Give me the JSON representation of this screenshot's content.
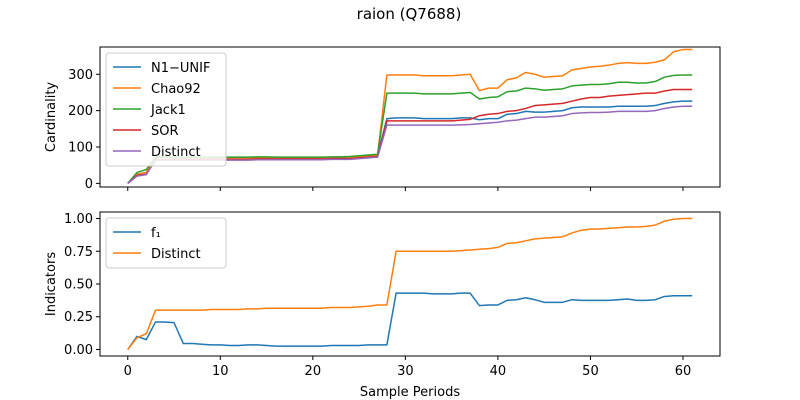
{
  "figure": {
    "title": "raion (Q7688)"
  },
  "colors": {
    "blue": "#1f77b4",
    "orange": "#ff7f0e",
    "green": "#2ca02c",
    "red": "#d62728",
    "purple": "#9467bd"
  },
  "chart_data": [
    {
      "type": "line",
      "title": "",
      "xlabel": "",
      "ylabel": "Cardinality",
      "xlim": [
        -3,
        64
      ],
      "ylim": [
        -10,
        375
      ],
      "xticks": [
        0,
        10,
        20,
        30,
        40,
        50,
        60
      ],
      "xtick_labels_visible": false,
      "yticks": [
        0,
        100,
        200,
        300
      ],
      "grid": false,
      "legend": "top-left",
      "x": [
        0,
        1,
        2,
        3,
        4,
        5,
        6,
        7,
        8,
        9,
        10,
        11,
        12,
        13,
        14,
        15,
        16,
        17,
        18,
        19,
        20,
        21,
        22,
        23,
        24,
        25,
        26,
        27,
        28,
        29,
        30,
        31,
        32,
        33,
        34,
        35,
        36,
        37,
        38,
        39,
        40,
        41,
        42,
        43,
        44,
        45,
        46,
        47,
        48,
        49,
        50,
        51,
        52,
        53,
        54,
        55,
        56,
        57,
        58,
        59,
        60,
        61
      ],
      "series": [
        {
          "name": "N1−UNIF",
          "color": "#1f77b4",
          "values": [
            0,
            25,
            30,
            72,
            72,
            72,
            70,
            70,
            70,
            70,
            70,
            70,
            70,
            70,
            70,
            70,
            70,
            70,
            70,
            70,
            70,
            70,
            72,
            72,
            72,
            74,
            76,
            78,
            178,
            180,
            180,
            180,
            178,
            178,
            178,
            178,
            180,
            180,
            175,
            178,
            178,
            190,
            192,
            198,
            196,
            196,
            198,
            200,
            208,
            210,
            210,
            210,
            210,
            212,
            212,
            212,
            212,
            214,
            220,
            224,
            226,
            226
          ]
        },
        {
          "name": "Chao92",
          "color": "#ff7f0e",
          "values": [
            0,
            25,
            30,
            72,
            72,
            72,
            70,
            70,
            70,
            70,
            70,
            70,
            70,
            70,
            70,
            70,
            70,
            70,
            70,
            70,
            70,
            70,
            72,
            72,
            72,
            74,
            76,
            78,
            298,
            298,
            298,
            298,
            296,
            296,
            296,
            296,
            298,
            300,
            255,
            262,
            262,
            285,
            290,
            305,
            300,
            292,
            294,
            296,
            312,
            316,
            320,
            322,
            325,
            330,
            332,
            330,
            330,
            333,
            340,
            362,
            368,
            368
          ]
        },
        {
          "name": "Jack1",
          "color": "#2ca02c",
          "values": [
            0,
            30,
            38,
            72,
            72,
            72,
            72,
            72,
            72,
            72,
            72,
            72,
            72,
            72,
            73,
            73,
            72,
            72,
            72,
            72,
            72,
            72,
            73,
            73,
            74,
            76,
            78,
            80,
            248,
            248,
            248,
            248,
            246,
            246,
            246,
            246,
            248,
            250,
            232,
            236,
            238,
            252,
            254,
            262,
            260,
            256,
            258,
            260,
            268,
            270,
            272,
            272,
            274,
            278,
            278,
            276,
            276,
            280,
            292,
            297,
            298,
            298
          ]
        },
        {
          "name": "SOR",
          "color": "#d62728",
          "values": [
            0,
            22,
            25,
            66,
            66,
            66,
            66,
            66,
            66,
            66,
            66,
            66,
            66,
            66,
            67,
            67,
            67,
            67,
            67,
            67,
            67,
            67,
            68,
            68,
            68,
            70,
            72,
            74,
            172,
            172,
            172,
            172,
            172,
            172,
            172,
            172,
            174,
            176,
            186,
            190,
            192,
            198,
            200,
            206,
            214,
            216,
            218,
            220,
            226,
            232,
            236,
            236,
            240,
            242,
            244,
            246,
            248,
            248,
            254,
            258,
            258,
            258
          ]
        },
        {
          "name": "Distinct",
          "color": "#9467bd",
          "values": [
            0,
            20,
            24,
            64,
            64,
            64,
            64,
            64,
            64,
            64,
            64,
            64,
            64,
            64,
            65,
            65,
            65,
            65,
            65,
            65,
            65,
            65,
            66,
            66,
            66,
            68,
            70,
            72,
            160,
            160,
            160,
            160,
            160,
            160,
            160,
            160,
            161,
            162,
            164,
            166,
            168,
            172,
            174,
            178,
            182,
            182,
            184,
            186,
            192,
            194,
            195,
            195,
            196,
            198,
            198,
            198,
            198,
            200,
            206,
            210,
            212,
            212
          ]
        }
      ]
    },
    {
      "type": "line",
      "title": "",
      "xlabel": "Sample Periods",
      "ylabel": "Indicators",
      "xlim": [
        -3,
        64
      ],
      "ylim": [
        -0.05,
        1.05
      ],
      "xticks": [
        0,
        10,
        20,
        30,
        40,
        50,
        60
      ],
      "yticks": [
        0.0,
        0.25,
        0.5,
        0.75,
        1.0
      ],
      "ytick_labels": [
        "0.00",
        "0.25",
        "0.50",
        "0.75",
        "1.00"
      ],
      "grid": false,
      "legend": "top-left",
      "x": [
        0,
        1,
        2,
        3,
        4,
        5,
        6,
        7,
        8,
        9,
        10,
        11,
        12,
        13,
        14,
        15,
        16,
        17,
        18,
        19,
        20,
        21,
        22,
        23,
        24,
        25,
        26,
        27,
        28,
        29,
        30,
        31,
        32,
        33,
        34,
        35,
        36,
        37,
        38,
        39,
        40,
        41,
        42,
        43,
        44,
        45,
        46,
        47,
        48,
        49,
        50,
        51,
        52,
        53,
        54,
        55,
        56,
        57,
        58,
        59,
        60,
        61
      ],
      "series": [
        {
          "name": "f₁",
          "color": "#1f77b4",
          "values": [
            0.0,
            0.1,
            0.075,
            0.21,
            0.21,
            0.205,
            0.045,
            0.045,
            0.04,
            0.035,
            0.035,
            0.03,
            0.03,
            0.035,
            0.035,
            0.03,
            0.025,
            0.025,
            0.025,
            0.025,
            0.025,
            0.025,
            0.03,
            0.03,
            0.03,
            0.03,
            0.035,
            0.035,
            0.035,
            0.43,
            0.43,
            0.43,
            0.43,
            0.425,
            0.425,
            0.425,
            0.43,
            0.43,
            0.335,
            0.34,
            0.34,
            0.375,
            0.38,
            0.395,
            0.38,
            0.36,
            0.36,
            0.36,
            0.38,
            0.375,
            0.375,
            0.375,
            0.375,
            0.38,
            0.385,
            0.375,
            0.375,
            0.38,
            0.405,
            0.41,
            0.41,
            0.41
          ]
        },
        {
          "name": "Distinct",
          "color": "#ff7f0e",
          "values": [
            0.0,
            0.09,
            0.12,
            0.3,
            0.3,
            0.3,
            0.3,
            0.3,
            0.3,
            0.305,
            0.305,
            0.305,
            0.305,
            0.31,
            0.31,
            0.315,
            0.315,
            0.315,
            0.315,
            0.315,
            0.315,
            0.315,
            0.32,
            0.32,
            0.32,
            0.325,
            0.33,
            0.34,
            0.34,
            0.75,
            0.75,
            0.75,
            0.75,
            0.75,
            0.75,
            0.75,
            0.755,
            0.76,
            0.765,
            0.77,
            0.78,
            0.81,
            0.815,
            0.83,
            0.845,
            0.85,
            0.855,
            0.86,
            0.89,
            0.91,
            0.92,
            0.92,
            0.925,
            0.93,
            0.935,
            0.935,
            0.94,
            0.95,
            0.98,
            0.995,
            1.0,
            1.0
          ]
        }
      ]
    }
  ]
}
